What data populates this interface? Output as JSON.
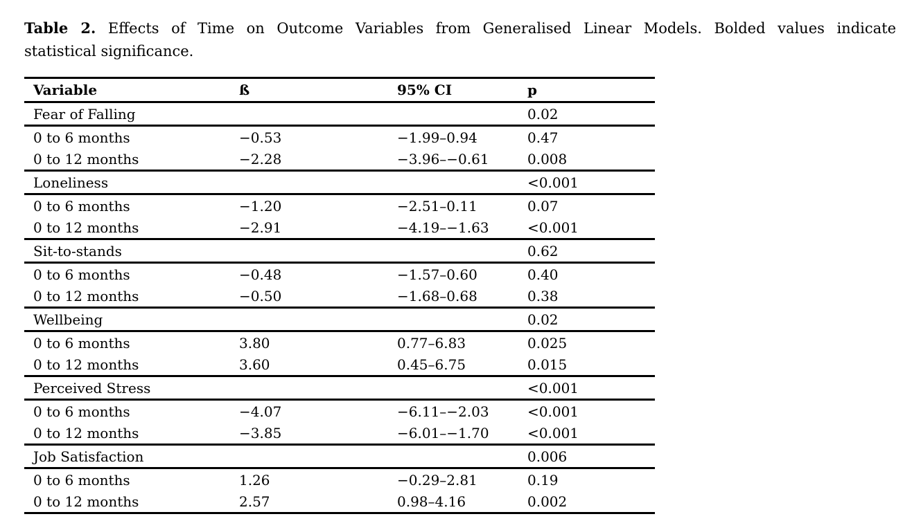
{
  "colors": {
    "text": "#000000",
    "background": "#ffffff",
    "rule": "#000000"
  },
  "caption": {
    "label": "Table 2.",
    "line1": "Effects of Time on Outcome Variables from Generalised Linear Models. Bolded values indicate",
    "line2": "statistical significance."
  },
  "table": {
    "headers": [
      "Variable",
      "ß",
      "95% CI",
      "p"
    ],
    "sections": [
      {
        "name": "Fear of Falling",
        "p": "0.02",
        "p_bold": true,
        "rows": [
          {
            "variable": "0 to 6 months",
            "beta": "−0.53",
            "ci": "−1.99–0.94",
            "p": "0.47",
            "p_bold": false
          },
          {
            "variable": "0 to 12 months",
            "beta": "−2.28",
            "ci": "−3.96–−0.61",
            "p": "0.008",
            "p_bold": true
          }
        ]
      },
      {
        "name": "Loneliness",
        "p": "<0.001",
        "p_bold": true,
        "rows": [
          {
            "variable": "0 to 6 months",
            "beta": "−1.20",
            "ci": "−2.51–0.11",
            "p": "0.07",
            "p_bold": false
          },
          {
            "variable": "0 to 12 months",
            "beta": "−2.91",
            "ci": "−4.19–−1.63",
            "p": "<0.001",
            "p_bold": true
          }
        ]
      },
      {
        "name": "Sit-to-stands",
        "p": "0.62",
        "p_bold": false,
        "rows": [
          {
            "variable": "0 to 6 months",
            "beta": "−0.48",
            "ci": "−1.57–0.60",
            "p": "0.40",
            "p_bold": false
          },
          {
            "variable": "0 to 12 months",
            "beta": "−0.50",
            "ci": "−1.68–0.68",
            "p": "0.38",
            "p_bold": false
          }
        ]
      },
      {
        "name": "Wellbeing",
        "p": "0.02",
        "p_bold": true,
        "rows": [
          {
            "variable": "0 to 6 months",
            "beta": "3.80",
            "ci": "0.77–6.83",
            "p": "0.025",
            "p_bold": true
          },
          {
            "variable": "0 to 12 months",
            "beta": "3.60",
            "ci": "0.45–6.75",
            "p": "0.015",
            "p_bold": true
          }
        ]
      },
      {
        "name": "Perceived Stress",
        "p": "<0.001",
        "p_bold": true,
        "rows": [
          {
            "variable": "0 to 6 months",
            "beta": "−4.07",
            "ci": "−6.11–−2.03",
            "p": "<0.001",
            "p_bold": true
          },
          {
            "variable": "0 to 12 months",
            "beta": "−3.85",
            "ci": "−6.01–−1.70",
            "p": "<0.001",
            "p_bold": true
          }
        ]
      },
      {
        "name": "Job Satisfaction",
        "p": "0.006",
        "p_bold": true,
        "rows": [
          {
            "variable": "0 to 6 months",
            "beta": "1.26",
            "ci": "−0.29–2.81",
            "p": "0.19",
            "p_bold": false
          },
          {
            "variable": "0 to 12 months",
            "beta": "2.57",
            "ci": "0.98–4.16",
            "p": "0.002",
            "p_bold": true
          }
        ]
      }
    ]
  }
}
